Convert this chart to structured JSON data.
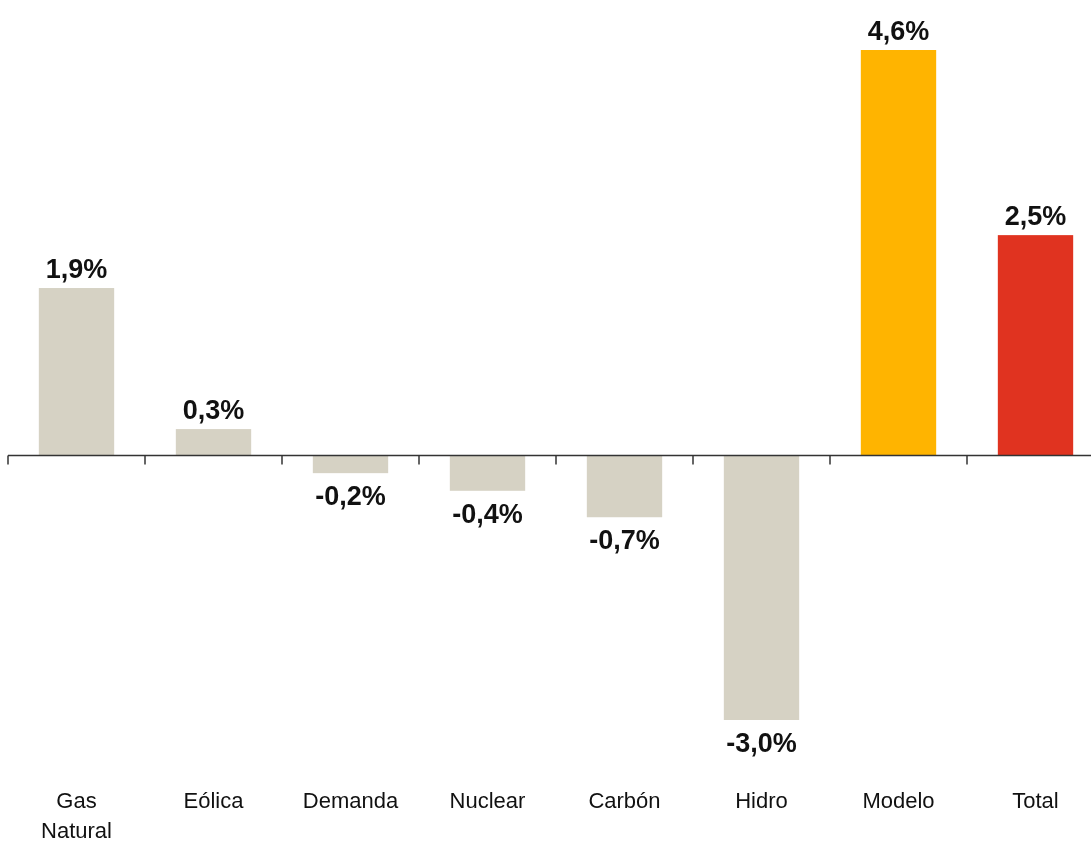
{
  "chart_data": {
    "type": "bar",
    "categories": [
      "Gas Natural",
      "Eólica",
      "Demanda",
      "Nuclear",
      "Carbón",
      "Hidro",
      "Modelo",
      "Total"
    ],
    "values": [
      1.9,
      0.3,
      -0.2,
      -0.4,
      -0.7,
      -3.0,
      4.6,
      2.5
    ],
    "value_labels": [
      "1,9%",
      "0,3%",
      "-0,2%",
      "-0,4%",
      "-0,7%",
      "-3,0%",
      "4,6%",
      "2,5%"
    ],
    "colors": [
      "#d6d2c4",
      "#d6d2c4",
      "#d6d2c4",
      "#d6d2c4",
      "#d6d2c4",
      "#d6d2c4",
      "#ffb400",
      "#e03320"
    ]
  }
}
